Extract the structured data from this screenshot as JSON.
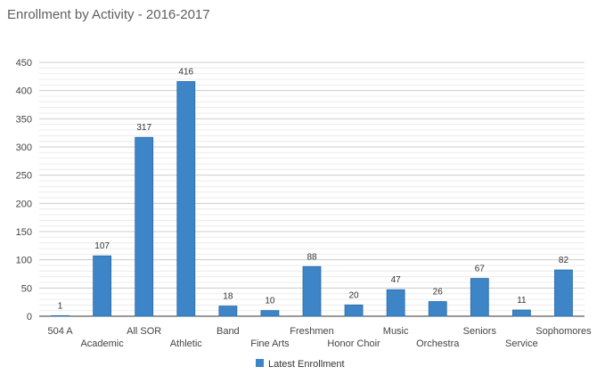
{
  "chart_data": {
    "type": "bar",
    "title": "Enrollment by Activity - 2016-2017",
    "xlabel": "",
    "ylabel": "",
    "ylim": [
      0,
      450
    ],
    "y_ticks": [
      0,
      50,
      100,
      150,
      200,
      250,
      300,
      350,
      400,
      450
    ],
    "grid": true,
    "legend_position": "bottom",
    "categories": [
      "504 A",
      "Academic",
      "All SOR",
      "Athletic",
      "Band",
      "Fine Arts",
      "Freshmen",
      "Honor Choir",
      "Music",
      "Orchestra",
      "Seniors",
      "Service",
      "Sophomores"
    ],
    "series": [
      {
        "name": "Latest Enrollment",
        "color": "#3d85c6",
        "values": [
          1,
          107,
          317,
          416,
          18,
          10,
          88,
          20,
          47,
          26,
          67,
          11,
          82
        ]
      }
    ]
  }
}
